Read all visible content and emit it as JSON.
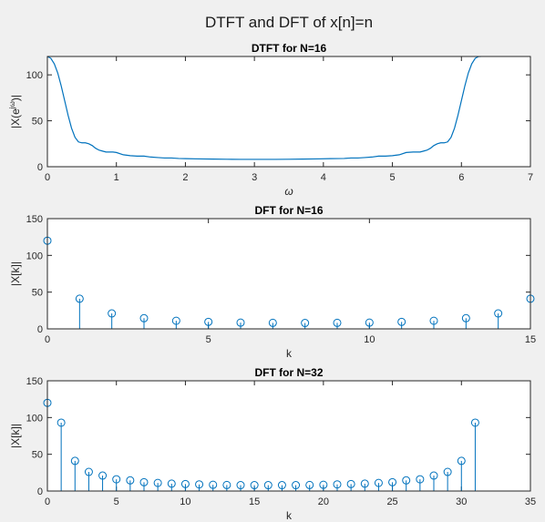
{
  "figure": {
    "title": "DTFT and DFT of x[n]=n",
    "background": "#f0f0f0",
    "series_color": "#0072bd"
  },
  "chart_data": [
    {
      "type": "line",
      "title": "DTFT for N=16",
      "xlabel": "ω",
      "ylabel": "|X(e",
      "ylabel_sup": "jω",
      "ylabel_tail": ")|",
      "xlim": [
        0,
        7
      ],
      "ylim": [
        0,
        120
      ],
      "xticks": [
        0,
        1,
        2,
        3,
        4,
        5,
        6,
        7
      ],
      "yticks": [
        0,
        50,
        100
      ],
      "series": [
        {
          "x": [
            0,
            0.05,
            0.1,
            0.15,
            0.2,
            0.25,
            0.3,
            0.35,
            0.4,
            0.45,
            0.5,
            0.55,
            0.6,
            0.65,
            0.7,
            0.75,
            0.8,
            0.85,
            0.9,
            0.95,
            1.0,
            1.1,
            1.2,
            1.3,
            1.4,
            1.5,
            1.6,
            1.7,
            1.8,
            1.9,
            2.0,
            2.2,
            2.4,
            2.6,
            2.8,
            3.0,
            3.14,
            3.3,
            3.5,
            3.7,
            3.9,
            4.1,
            4.3,
            4.4,
            4.5,
            4.6,
            4.7,
            4.8,
            4.9,
            5.0,
            5.1,
            5.2,
            5.3,
            5.35,
            5.4,
            5.45,
            5.5,
            5.55,
            5.6,
            5.65,
            5.7,
            5.75,
            5.8,
            5.85,
            5.9,
            5.95,
            6.0,
            6.05,
            6.1,
            6.15,
            6.2,
            6.25,
            6.28
          ],
          "y": [
            120,
            118,
            112,
            102,
            88,
            72,
            56,
            42,
            32,
            27,
            26,
            26,
            25,
            23,
            20,
            18,
            17,
            16,
            16,
            16,
            15.5,
            13,
            12,
            11.5,
            11.5,
            10.5,
            10,
            9.5,
            9.5,
            9,
            8.8,
            8.5,
            8.3,
            8.1,
            8.0,
            8.0,
            8.0,
            8.0,
            8.1,
            8.3,
            8.5,
            8.8,
            9,
            9.5,
            9.5,
            10,
            10.5,
            11.5,
            11.5,
            12,
            13,
            15.5,
            16,
            16,
            16,
            17,
            18,
            20,
            23,
            25,
            26,
            26,
            27,
            32,
            42,
            56,
            72,
            88,
            102,
            112,
            118,
            120,
            120
          ]
        }
      ]
    },
    {
      "type": "stem",
      "title": "DFT for N=16",
      "xlabel": "k",
      "ylabel": "|X[k]|",
      "xlim": [
        0,
        15
      ],
      "ylim": [
        0,
        150
      ],
      "xticks": [
        0,
        5,
        10,
        15
      ],
      "yticks": [
        0,
        50,
        100,
        150
      ],
      "series": [
        {
          "x": [
            0,
            1,
            2,
            3,
            4,
            5,
            6,
            7,
            8,
            9,
            10,
            11,
            12,
            13,
            14,
            15
          ],
          "y": [
            120,
            41,
            21,
            14.5,
            11,
            9.5,
            8.5,
            8.2,
            8,
            8.2,
            8.5,
            9.5,
            11,
            14.5,
            21,
            41
          ]
        }
      ]
    },
    {
      "type": "stem",
      "title": "DFT for N=32",
      "xlabel": "k",
      "ylabel": "|X[k]|",
      "xlim": [
        0,
        35
      ],
      "ylim": [
        0,
        150
      ],
      "xticks": [
        0,
        5,
        10,
        15,
        20,
        25,
        30,
        35
      ],
      "yticks": [
        0,
        50,
        100,
        150
      ],
      "series": [
        {
          "x": [
            0,
            1,
            2,
            3,
            4,
            5,
            6,
            7,
            8,
            9,
            10,
            11,
            12,
            13,
            14,
            15,
            16,
            17,
            18,
            19,
            20,
            21,
            22,
            23,
            24,
            25,
            26,
            27,
            28,
            29,
            30,
            31
          ],
          "y": [
            120,
            93,
            41,
            26,
            21,
            16,
            14.5,
            12,
            11,
            10,
            9.5,
            9,
            8.5,
            8.2,
            8,
            8,
            8,
            8,
            8,
            8.2,
            8.5,
            9,
            9.5,
            10,
            11,
            12,
            14.5,
            16,
            21,
            26,
            41,
            93
          ]
        }
      ]
    }
  ]
}
